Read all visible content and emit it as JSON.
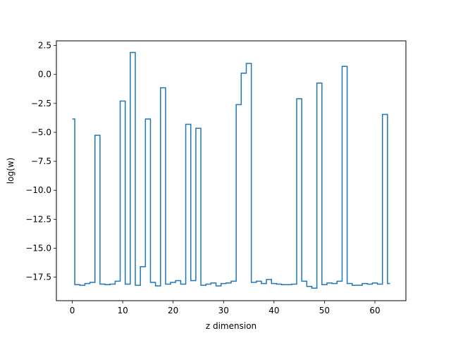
{
  "chart_data": {
    "type": "line",
    "drawstyle": "steps-mid",
    "title": "",
    "xlabel": "z dimension",
    "ylabel": "log(w)",
    "xlim": [
      -3.15,
      66.15
    ],
    "ylim": [
      -19.53,
      2.9
    ],
    "grid": false,
    "series": [
      {
        "color": "#1f77b4",
        "x": [
          0,
          1,
          2,
          3,
          4,
          5,
          6,
          7,
          8,
          9,
          10,
          11,
          12,
          13,
          14,
          15,
          16,
          17,
          18,
          19,
          20,
          21,
          22,
          23,
          24,
          25,
          26,
          27,
          28,
          29,
          30,
          31,
          32,
          33,
          34,
          35,
          36,
          37,
          38,
          39,
          40,
          41,
          42,
          43,
          44,
          45,
          46,
          47,
          48,
          49,
          50,
          51,
          52,
          53,
          54,
          55,
          56,
          57,
          58,
          59,
          60,
          61,
          62,
          63
        ],
        "values": [
          -3.85,
          -18.15,
          -18.2,
          -18.05,
          -17.95,
          -5.25,
          -18.1,
          -18.15,
          -18.1,
          -17.85,
          -2.3,
          -18.1,
          1.9,
          -18.2,
          -16.6,
          -3.85,
          -17.95,
          -18.25,
          -1.15,
          -18.1,
          -17.95,
          -17.8,
          -18.1,
          -4.3,
          -17.8,
          -4.65,
          -18.2,
          -18.1,
          -18.0,
          -18.25,
          -18.05,
          -18.0,
          -17.85,
          -2.6,
          0.1,
          0.95,
          -17.95,
          -17.85,
          -18.05,
          -17.7,
          -18.05,
          -18.1,
          -18.15,
          -18.15,
          -18.1,
          -2.1,
          -17.85,
          -18.3,
          -18.45,
          -0.75,
          -18.15,
          -18.0,
          -18.05,
          -17.85,
          0.7,
          -18.05,
          -18.2,
          -18.2,
          -18.05,
          -18.1,
          -18.0,
          -18.1,
          -3.45,
          -18.05
        ]
      }
    ],
    "xticks": [
      0,
      10,
      20,
      30,
      40,
      50,
      60
    ],
    "xtick_labels": [
      "0",
      "10",
      "20",
      "30",
      "40",
      "50",
      "60"
    ],
    "yticks": [
      2.5,
      0.0,
      -2.5,
      -5.0,
      -7.5,
      -10.0,
      -12.5,
      -15.0,
      -17.5
    ],
    "ytick_labels": [
      "2.5",
      "0.0",
      "−2.5",
      "−5.0",
      "−7.5",
      "−10.0",
      "−12.5",
      "−15.0",
      "−17.5"
    ]
  }
}
